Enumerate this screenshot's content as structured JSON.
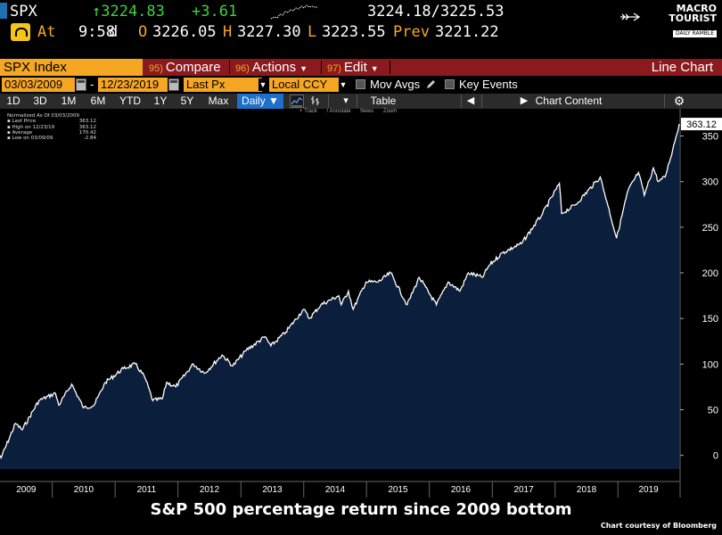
{
  "quote": {
    "ticker": "SPX",
    "last": "↑3224.83",
    "change": "+3.61",
    "bid_ask": "3224.18/3225.53",
    "at_label": "At",
    "at_time": "9:58",
    "at_flag": "d",
    "open_label": "O",
    "open": "3226.05",
    "high_label": "H",
    "high": "3227.30",
    "low_label": "L",
    "low": "3223.55",
    "prev_label": "Prev",
    "prev": "3221.22"
  },
  "logo": {
    "line1": "MACRO",
    "line2": "TOURIST",
    "line3": "DAILY RAMBLE"
  },
  "function_bar": {
    "security": "SPX Index",
    "buttons": [
      {
        "num": "95)",
        "label": "Compare"
      },
      {
        "num": "96)",
        "label": "Actions"
      },
      {
        "num": "97)",
        "label": "Edit"
      }
    ],
    "title": "Line Chart"
  },
  "params": {
    "start_date": "03/03/2009",
    "dash": "-",
    "end_date": "12/23/2019",
    "field": "Last Px",
    "currency": "Local CCY",
    "mov_avgs": "Mov Avgs",
    "key_events": "Key Events"
  },
  "ranges": {
    "items": [
      "1D",
      "3D",
      "1M",
      "6M",
      "YTD",
      "1Y",
      "5Y",
      "Max"
    ],
    "frequency": "Daily ▼",
    "table": "Table",
    "chart_content": "Chart Content"
  },
  "subtools": [
    "+ Track",
    "/ Annotate",
    "News",
    "Zoom"
  ],
  "legend": {
    "title": "Normalized As Of 03/03/2009",
    "rows": [
      {
        "k": "Last Price",
        "v": "363.12"
      },
      {
        "k": "High on 12/23/19",
        "v": "363.12"
      },
      {
        "k": "Average",
        "v": "170.42"
      },
      {
        "k": "Low on 03/09/09",
        "v": "-2.84"
      }
    ]
  },
  "caption": "S&P 500 percentage return since 2009 bottom",
  "credit": "Chart courtesy of Bloomberg",
  "colors": {
    "area_fill": "#0b1f3d",
    "line": "#ffffff",
    "last_label_bg": "#ffffff"
  },
  "chart_data": {
    "type": "area",
    "title": "",
    "xlabel": "",
    "ylabel": "",
    "x_range": [
      "2009-03-03",
      "2019-12-23"
    ],
    "xticks": [
      "2009",
      "2010",
      "2011",
      "2012",
      "2013",
      "2014",
      "2015",
      "2016",
      "2017",
      "2018",
      "2019"
    ],
    "yticks": [
      0,
      50,
      100,
      150,
      200,
      250,
      300,
      350
    ],
    "ylim": [
      -15,
      372
    ],
    "last_value_label": "363.12",
    "grid": false,
    "y_axis_side": "right",
    "x": [
      "2009-03-03",
      "2009-03-09",
      "2009-06-01",
      "2009-07-10",
      "2009-10-15",
      "2010-01-19",
      "2010-02-08",
      "2010-04-23",
      "2010-07-02",
      "2010-09-01",
      "2010-11-05",
      "2011-02-18",
      "2011-04-29",
      "2011-06-24",
      "2011-08-08",
      "2011-10-03",
      "2011-10-27",
      "2011-12-19",
      "2012-03-30",
      "2012-06-04",
      "2012-09-14",
      "2012-11-15",
      "2013-01-31",
      "2013-05-21",
      "2013-06-24",
      "2013-09-18",
      "2013-12-31",
      "2014-02-03",
      "2014-04-11",
      "2014-07-24",
      "2014-08-07",
      "2014-09-18",
      "2014-10-15",
      "2014-12-29",
      "2015-03-10",
      "2015-05-21",
      "2015-08-25",
      "2015-11-03",
      "2016-02-11",
      "2016-04-20",
      "2016-06-27",
      "2016-08-15",
      "2016-11-04",
      "2016-12-13",
      "2017-03-01",
      "2017-06-19",
      "2017-10-20",
      "2018-01-26",
      "2018-02-08",
      "2018-05-01",
      "2018-09-20",
      "2018-10-29",
      "2018-12-24",
      "2019-02-28",
      "2019-04-30",
      "2019-06-03",
      "2019-07-26",
      "2019-08-23",
      "2019-10-02",
      "2019-11-15",
      "2019-12-23"
    ],
    "series": [
      {
        "values": [
          0,
          -2.8,
          35,
          28,
          60,
          68,
          55,
          78,
          52,
          55,
          80,
          95,
          100,
          85,
          60,
          62,
          80,
          75,
          100,
          90,
          110,
          98,
          115,
          130,
          120,
          135,
          160,
          150,
          165,
          175,
          165,
          180,
          160,
          190,
          190,
          200,
          165,
          195,
          165,
          190,
          180,
          200,
          195,
          208,
          222,
          232,
          265,
          298,
          265,
          275,
          305,
          278,
          238,
          290,
          310,
          285,
          315,
          300,
          305,
          335,
          363.12
        ]
      }
    ]
  }
}
